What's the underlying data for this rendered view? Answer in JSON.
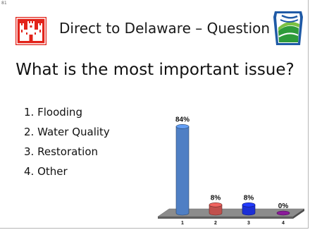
{
  "slide": {
    "number": "81",
    "title": "Direct to Delaware – Question 1",
    "question": "What is the most important issue?",
    "options": [
      {
        "num": "1.",
        "label": "Flooding"
      },
      {
        "num": "2.",
        "label": "Water Quality"
      },
      {
        "num": "3.",
        "label": "Restoration"
      },
      {
        "num": "4.",
        "label": "Other"
      }
    ],
    "logos": {
      "left": "castle-logo",
      "right": "keystone-logo"
    }
  },
  "chart_data": {
    "type": "bar",
    "categories": [
      "1",
      "2",
      "3",
      "4"
    ],
    "values": [
      84,
      8,
      8,
      0
    ],
    "data_labels": [
      "84%",
      "8%",
      "8%",
      "0%"
    ],
    "colors": [
      "#4f7fc4",
      "#c0504d",
      "#1c2fd6",
      "#8a1a9a"
    ],
    "ylim": [
      0,
      100
    ],
    "grid": false,
    "legend": "none"
  }
}
